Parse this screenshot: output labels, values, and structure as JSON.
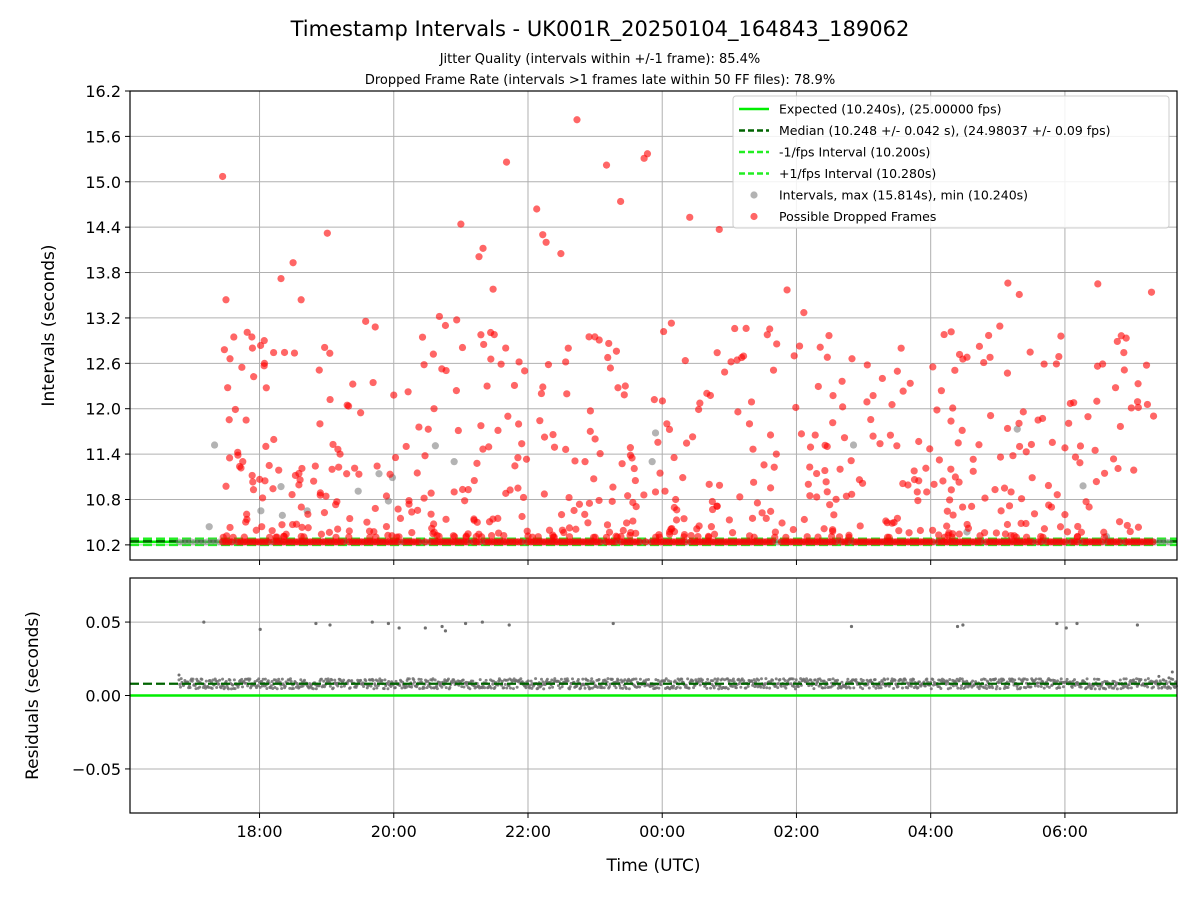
{
  "figure": {
    "title": "Timestamp Intervals - UK001R_20250104_164843_189062",
    "subtitle_1": "Jitter Quality (intervals within +/-1 frame): 85.4%",
    "subtitle_2": "Dropped Frame Rate (intervals >1 frames late within 50 FF files): 78.9%"
  },
  "chart_data": [
    {
      "type": "scatter",
      "panel": "top",
      "ylabel": "Intervals (seconds)",
      "xlabel": "",
      "x_unit": "hours since 17:00 UTC",
      "xlim": [
        -0.93,
        14.67
      ],
      "ylim": [
        10.0,
        16.2
      ],
      "y_ticks": [
        10.2,
        10.8,
        11.4,
        12.0,
        12.6,
        13.2,
        13.8,
        14.4,
        15.0,
        15.6,
        16.2
      ],
      "y_tick_labels": [
        "10.2",
        "10.8",
        "11.4",
        "12.0",
        "12.6",
        "13.2",
        "13.8",
        "14.4",
        "15.0",
        "15.6",
        "16.2"
      ],
      "x_ticks": [
        1,
        3,
        5,
        7,
        9,
        11,
        13
      ],
      "x_tick_labels": [
        "18:00",
        "20:00",
        "22:00",
        "00:00",
        "02:00",
        "04:00",
        "06:00"
      ],
      "grid": true,
      "legend_position": "top-right",
      "lines": [
        {
          "name": "Expected (10.240s), (25.00000 fps)",
          "y": 10.24,
          "color": "#00ee00",
          "style": "solid"
        },
        {
          "name": "Median (10.248 +/- 0.042 s), (24.98037 +/- 0.09 fps)",
          "y": 10.248,
          "color": "#006400",
          "style": "dashed"
        },
        {
          "name": "-1/fps Interval (10.200s)",
          "y": 10.2,
          "color": "#22ee22",
          "style": "dashed"
        },
        {
          "name": "+1/fps Interval (10.280s)",
          "y": 10.28,
          "color": "#22ee22",
          "style": "dashed"
        }
      ],
      "series": [
        {
          "name": "Intervals, max (15.814s), min (10.240s)",
          "color": "#808080",
          "points": [
            [
              0.25,
              10.44
            ],
            [
              0.33,
              11.52
            ],
            [
              1.02,
              10.65
            ],
            [
              1.32,
              10.97
            ],
            [
              1.34,
              10.59
            ],
            [
              1.71,
              10.65
            ],
            [
              2.47,
              10.91
            ],
            [
              2.78,
              11.14
            ],
            [
              2.92,
              10.78
            ],
            [
              2.98,
              11.09
            ],
            [
              3.62,
              11.51
            ],
            [
              3.9,
              11.3
            ],
            [
              6.85,
              11.3
            ],
            [
              6.9,
              11.68
            ],
            [
              9.85,
              11.52
            ],
            [
              11.54,
              10.37
            ],
            [
              12.29,
              11.73
            ],
            [
              13.27,
              10.98
            ],
            [
              13.62,
              10.31
            ]
          ]
        },
        {
          "name": "Possible Dropped Frames",
          "color": "#ff0000",
          "points": [
            [
              0.45,
              15.07
            ],
            [
              0.5,
              13.44
            ],
            [
              0.56,
              12.66
            ],
            [
              0.64,
              11.99
            ],
            [
              0.8,
              11.85
            ],
            [
              0.91,
              10.93
            ],
            [
              1.07,
              12.9
            ],
            [
              1.32,
              13.72
            ],
            [
              1.5,
              13.93
            ],
            [
              1.62,
              13.44
            ],
            [
              1.89,
              12.51
            ],
            [
              1.97,
              12.81
            ],
            [
              2.01,
              14.32
            ],
            [
              3.0,
              12.18
            ],
            [
              3.68,
              13.22
            ],
            [
              3.77,
              13.1
            ],
            [
              4.0,
              14.44
            ],
            [
              4.27,
              14.01
            ],
            [
              4.33,
              14.12
            ],
            [
              4.48,
              13.58
            ],
            [
              4.68,
              15.26
            ],
            [
              5.13,
              14.64
            ],
            [
              5.22,
              14.3
            ],
            [
              5.27,
              14.2
            ],
            [
              5.49,
              14.05
            ],
            [
              5.73,
              15.82
            ],
            [
              5.91,
              12.95
            ],
            [
              6.17,
              15.22
            ],
            [
              6.38,
              14.74
            ],
            [
              6.73,
              15.31
            ],
            [
              6.78,
              15.37
            ],
            [
              7.41,
              14.53
            ],
            [
              7.85,
              14.37
            ],
            [
              8.08,
              13.06
            ],
            [
              8.86,
              13.57
            ],
            [
              9.11,
              13.27
            ],
            [
              9.46,
              12.68
            ],
            [
              10.05,
              12.09
            ],
            [
              10.28,
              12.4
            ],
            [
              10.56,
              12.8
            ],
            [
              11.2,
              12.98
            ],
            [
              11.79,
              12.61
            ],
            [
              12.15,
              13.66
            ],
            [
              12.32,
              13.51
            ],
            [
              12.69,
              12.59
            ],
            [
              12.94,
              12.96
            ],
            [
              13.49,
              13.65
            ],
            [
              14.29,
              13.54
            ],
            [
              14.09,
              12.33
            ],
            [
              13.99,
              12.01
            ],
            [
              5.5,
              10.6
            ],
            [
              4.2,
              11.05
            ],
            [
              6.0,
              11.6
            ],
            [
              7.7,
              11.0
            ],
            [
              3.1,
              10.55
            ],
            [
              9.2,
              10.85
            ],
            [
              11.3,
              11.2
            ],
            [
              12.8,
              10.7
            ],
            [
              2.2,
              11.4
            ],
            [
              8.7,
              11.4
            ],
            [
              10.8,
              10.9
            ],
            [
              6.9,
              10.9
            ],
            [
              5.2,
              12.2
            ],
            [
              4.7,
              11.9
            ],
            [
              3.6,
              12.0
            ],
            [
              1.9,
              11.8
            ],
            [
              0.75,
              11.3
            ],
            [
              13.45,
              11.45
            ],
            [
              12.6,
              11.85
            ],
            [
              10.4,
              11.65
            ],
            [
              9.65,
              11.2
            ],
            [
              8.3,
              11.8
            ],
            [
              7.2,
              10.8
            ],
            [
              6.45,
              12.3
            ],
            [
              5.85,
              11.3
            ],
            [
              4.95,
              12.5
            ],
            [
              4.55,
              10.55
            ],
            [
              3.35,
              11.15
            ],
            [
              2.6,
              10.5
            ],
            [
              1.15,
              10.3
            ],
            [
              13.0,
              10.6
            ],
            [
              12.1,
              10.95
            ],
            [
              11.05,
              11.0
            ],
            [
              9.95,
              10.45
            ],
            [
              8.55,
              10.55
            ],
            [
              7.55,
              10.45
            ],
            [
              6.6,
              11.05
            ],
            [
              5.6,
              12.8
            ],
            [
              4.85,
              10.95
            ],
            [
              3.9,
              10.9
            ]
          ],
          "baseline_row": {
            "y": 10.24,
            "x_range": [
              0.45,
              14.35
            ]
          }
        }
      ]
    },
    {
      "type": "scatter",
      "panel": "bottom",
      "xlabel": "Time (UTC)",
      "ylabel": "Residuals (seconds)",
      "x_unit": "hours since 17:00 UTC",
      "xlim": [
        -0.93,
        14.67
      ],
      "ylim": [
        -0.08,
        0.08
      ],
      "y_ticks": [
        -0.05,
        0.0,
        0.05
      ],
      "y_tick_labels": [
        "−0.05",
        "0.00",
        "0.05"
      ],
      "x_ticks": [
        1,
        3,
        5,
        7,
        9,
        11,
        13
      ],
      "x_tick_labels": [
        "18:00",
        "20:00",
        "22:00",
        "00:00",
        "02:00",
        "04:00",
        "06:00"
      ],
      "grid": true,
      "lines": [
        {
          "name": "Expected",
          "y": 0.0,
          "color": "#00ee00",
          "style": "solid"
        },
        {
          "name": "Median",
          "y": 0.008,
          "color": "#006400",
          "style": "dashed"
        }
      ],
      "series": [
        {
          "name": "Residuals",
          "color": "#707070",
          "band": {
            "x_range": [
              -0.2,
              14.67
            ],
            "y_center": 0.008,
            "y_spread": 0.0035
          },
          "outliers": [
            [
              0.17,
              0.05
            ],
            [
              1.01,
              0.045
            ],
            [
              1.84,
              0.049
            ],
            [
              2.05,
              0.048
            ],
            [
              2.68,
              0.05
            ],
            [
              2.92,
              0.049
            ],
            [
              3.08,
              0.046
            ],
            [
              3.47,
              0.046
            ],
            [
              3.72,
              0.047
            ],
            [
              3.77,
              0.044
            ],
            [
              4.07,
              0.049
            ],
            [
              4.32,
              0.05
            ],
            [
              4.72,
              0.048
            ],
            [
              6.27,
              0.049
            ],
            [
              9.82,
              0.047
            ],
            [
              11.4,
              0.047
            ],
            [
              11.48,
              0.048
            ],
            [
              12.88,
              0.049
            ],
            [
              13.02,
              0.046
            ],
            [
              13.18,
              0.049
            ],
            [
              14.08,
              0.048
            ]
          ]
        }
      ]
    }
  ]
}
